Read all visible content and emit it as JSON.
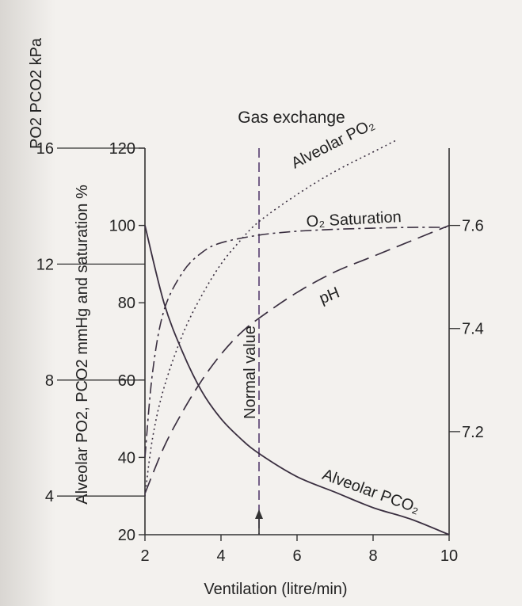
{
  "chart_data": {
    "type": "line",
    "title": "Gas exchange",
    "xlabel": "Ventilation (litre/min)",
    "ylabel_left": "Alveolar PO2, PCO2 mmHg and saturation %",
    "ylabel_kpa": "PO2 PCO2 kPa",
    "xlim": [
      2,
      10
    ],
    "ylim": [
      20,
      120
    ],
    "ph_lim": [
      7.0,
      7.6
    ],
    "x_ticks": [
      "2",
      "4",
      "6",
      "8",
      "10"
    ],
    "y_ticks": [
      "20",
      "40",
      "60",
      "80",
      "100",
      "120"
    ],
    "kpa_ticks": [
      {
        "label": "4",
        "y": 30
      },
      {
        "label": "8",
        "y": 60
      },
      {
        "label": "12",
        "y": 90
      },
      {
        "label": "16",
        "y": 120
      }
    ],
    "ph_ticks": [
      {
        "label": "7.2",
        "value": 7.2
      },
      {
        "label": "7.4",
        "value": 7.4
      },
      {
        "label": "7.6",
        "value": 7.6
      }
    ],
    "normal_value": {
      "x": 5,
      "label": "Normal value"
    },
    "series": [
      {
        "name": "Alveolar PCO2",
        "label": "Alveolar PCO₂",
        "x": [
          2,
          2.5,
          3,
          3.5,
          4,
          4.5,
          5,
          6,
          7,
          8,
          9,
          10
        ],
        "y": [
          100,
          80,
          67,
          57,
          50,
          45,
          41,
          35,
          31,
          27,
          24,
          20
        ]
      },
      {
        "name": "Alveolar PO2",
        "label": "Alveolar PO₂",
        "x": [
          2,
          2.2,
          2.5,
          3,
          3.5,
          4,
          4.5,
          5,
          6,
          7,
          8,
          8.6
        ],
        "y": [
          30,
          45,
          58,
          72,
          82,
          90,
          96,
          101,
          108,
          114,
          119,
          122
        ]
      },
      {
        "name": "O2 Saturation",
        "label": "O₂ Saturation",
        "x": [
          2,
          2.2,
          2.5,
          3,
          3.5,
          4,
          5,
          6,
          7,
          8,
          9,
          10
        ],
        "y": [
          40,
          62,
          78,
          88,
          93,
          95.5,
          97.5,
          98.5,
          99,
          99.3,
          99.5,
          99.5
        ]
      },
      {
        "name": "pH",
        "label": "pH",
        "x": [
          2,
          2.5,
          3,
          3.5,
          4,
          4.5,
          5,
          6,
          7,
          8,
          9,
          10
        ],
        "ph": [
          7.08,
          7.17,
          7.24,
          7.3,
          7.35,
          7.39,
          7.42,
          7.47,
          7.51,
          7.54,
          7.57,
          7.6
        ]
      }
    ]
  }
}
